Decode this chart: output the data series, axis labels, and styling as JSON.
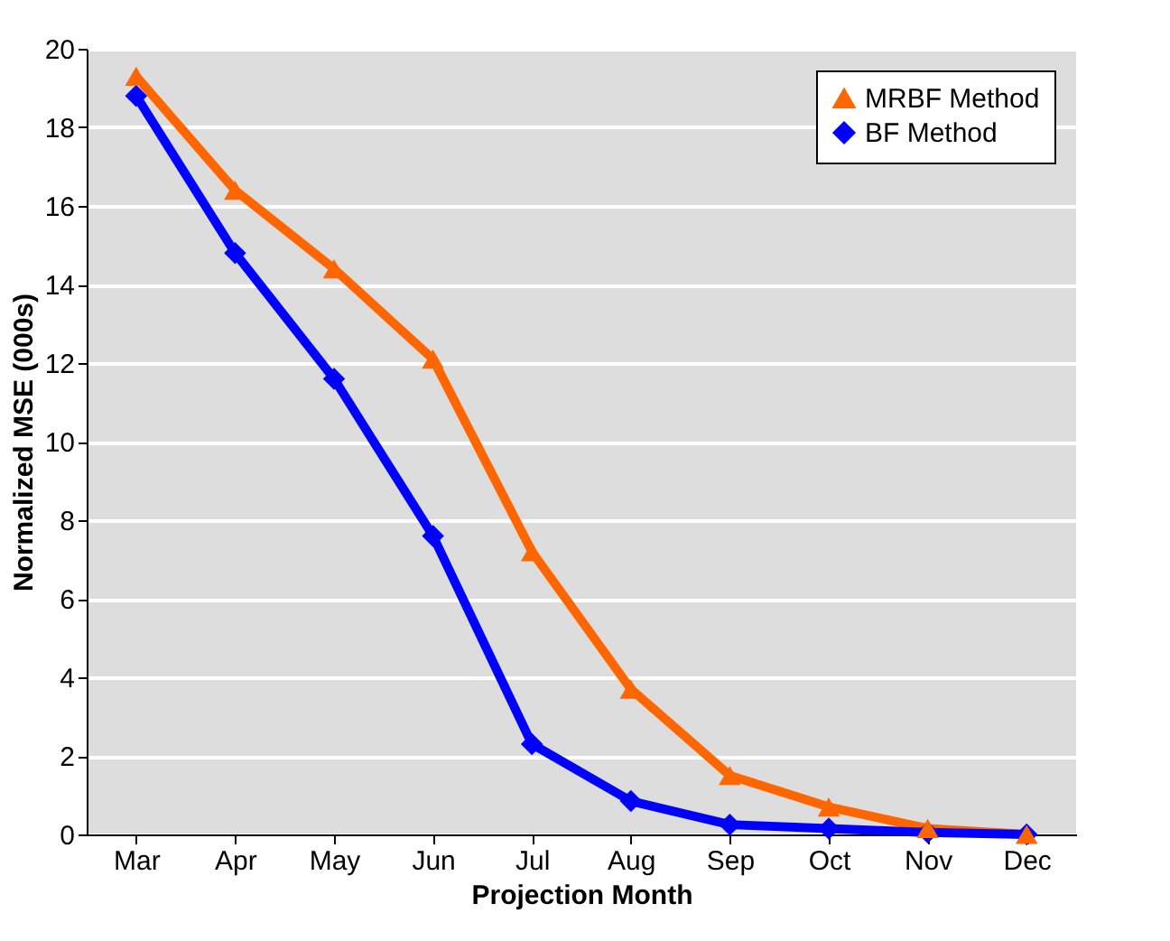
{
  "chart_data": {
    "type": "line",
    "xlabel": "Projection Month",
    "ylabel": "Normalized MSE (000s)",
    "categories": [
      "Mar",
      "Apr",
      "May",
      "Jun",
      "Jul",
      "Aug",
      "Sep",
      "Oct",
      "Nov",
      "Dec"
    ],
    "series": [
      {
        "name": "MRBF Method",
        "color": "#ff6600",
        "marker": "triangle",
        "values": [
          19.3,
          16.4,
          14.4,
          12.1,
          7.2,
          3.7,
          1.5,
          0.7,
          0.15,
          0.0
        ]
      },
      {
        "name": "BF Method",
        "color": "#0000ff",
        "marker": "diamond",
        "values": [
          18.8,
          14.8,
          11.6,
          7.6,
          2.3,
          0.85,
          0.25,
          0.15,
          0.05,
          0.0
        ]
      }
    ],
    "ylim": [
      0,
      20
    ],
    "yticks": [
      0,
      2,
      4,
      6,
      8,
      10,
      12,
      14,
      16,
      18,
      20
    ],
    "grid": "y",
    "legend": "top right",
    "line_style": "solid"
  }
}
